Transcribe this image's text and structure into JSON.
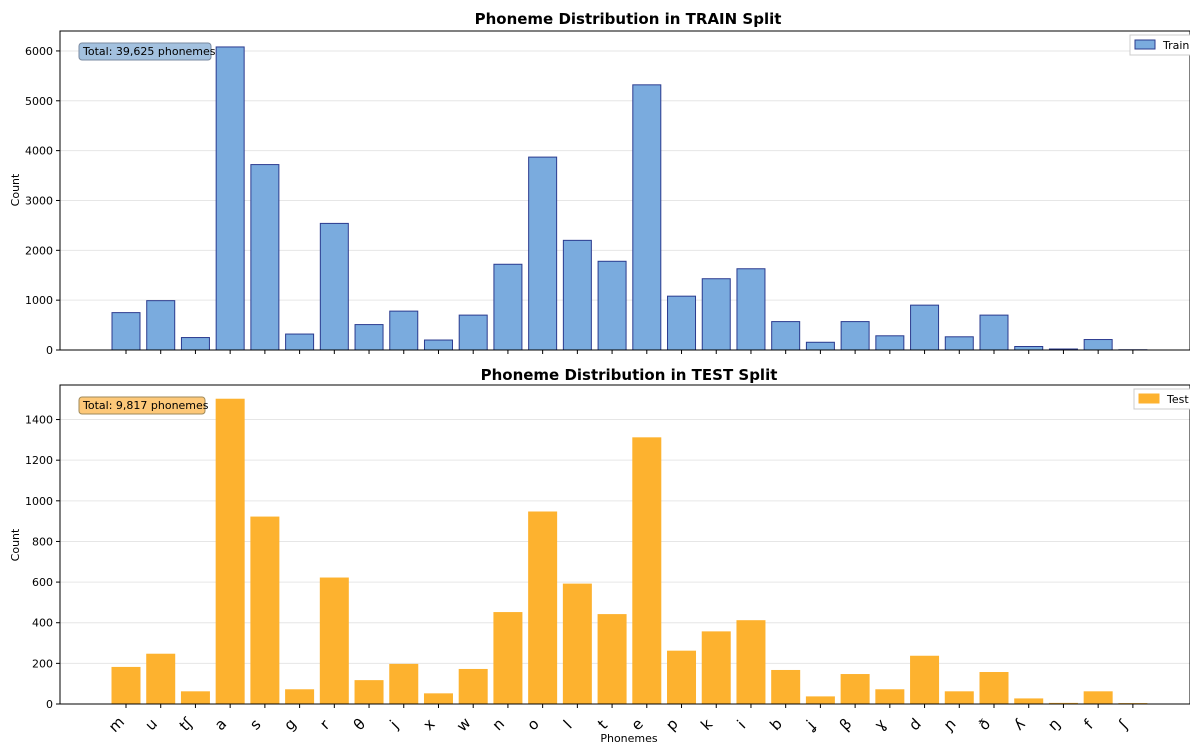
{
  "chart_data": [
    {
      "type": "bar",
      "title": "Phoneme Distribution in TRAIN Split",
      "ylabel": "Count",
      "xlabel": "",
      "ylim": [
        0,
        6400
      ],
      "yticks": [
        0,
        1000,
        2000,
        3000,
        4000,
        5000,
        6000
      ],
      "grid": "horizontal",
      "legend_position": "top-right",
      "annotation": "Total: 39,625 phonemes",
      "categories": [
        "m",
        "u",
        "tʃ",
        "a",
        "s",
        "g",
        "r",
        "θ",
        "j",
        "x",
        "w",
        "n",
        "o",
        "l",
        "t",
        "e",
        "p",
        "k",
        "i",
        "b",
        "ʝ",
        "β",
        "ɣ",
        "d",
        "ɲ",
        "ð",
        "ʎ",
        "ŋ",
        "f",
        "ʃ"
      ],
      "series": [
        {
          "name": "Train",
          "color": "#7aabde",
          "edge": "#2b3b8f",
          "values": [
            750,
            990,
            250,
            6080,
            3720,
            320,
            2540,
            510,
            780,
            200,
            700,
            1720,
            3870,
            2200,
            1780,
            5320,
            1080,
            1430,
            1630,
            570,
            155,
            570,
            285,
            900,
            265,
            700,
            70,
            20,
            210,
            5
          ]
        }
      ]
    },
    {
      "type": "bar",
      "title": "Phoneme Distribution in TEST Split",
      "ylabel": "Count",
      "xlabel": "Phonemes",
      "ylim": [
        0,
        1570
      ],
      "yticks": [
        0,
        200,
        400,
        600,
        800,
        1000,
        1200,
        1400
      ],
      "grid": "horizontal",
      "legend_position": "top-right",
      "annotation": "Total: 9,817 phonemes",
      "categories": [
        "m",
        "u",
        "tʃ",
        "a",
        "s",
        "g",
        "r",
        "θ",
        "j",
        "x",
        "w",
        "n",
        "o",
        "l",
        "t",
        "e",
        "p",
        "k",
        "i",
        "b",
        "ʝ",
        "β",
        "ɣ",
        "d",
        "ɲ",
        "ð",
        "ʎ",
        "ŋ",
        "f",
        "ʃ"
      ],
      "series": [
        {
          "name": "Test",
          "color": "#fdb22f",
          "edge": "#fdb22f",
          "values": [
            180,
            245,
            60,
            1500,
            920,
            70,
            620,
            115,
            195,
            50,
            170,
            450,
            945,
            590,
            440,
            1310,
            260,
            355,
            410,
            165,
            35,
            145,
            70,
            235,
            60,
            155,
            25,
            3,
            60,
            2
          ]
        }
      ]
    }
  ]
}
